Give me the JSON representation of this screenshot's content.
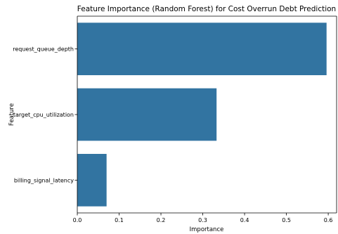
{
  "chart_data": {
    "type": "bar",
    "orientation": "horizontal",
    "title": "Feature Importance (Random Forest) for Cost Overrun Debt Prediction",
    "xlabel": "Importance",
    "ylabel": "Feature",
    "categories": [
      "request_queue_depth",
      "target_cpu_utilization",
      "billing_signal_latency"
    ],
    "values": [
      0.596,
      0.333,
      0.07
    ],
    "xlim": [
      0,
      0.62
    ],
    "xticks": [
      "0.0",
      "0.1",
      "0.2",
      "0.3",
      "0.4",
      "0.5",
      "0.6"
    ],
    "grid": false,
    "bar_color": "#3274a1"
  }
}
